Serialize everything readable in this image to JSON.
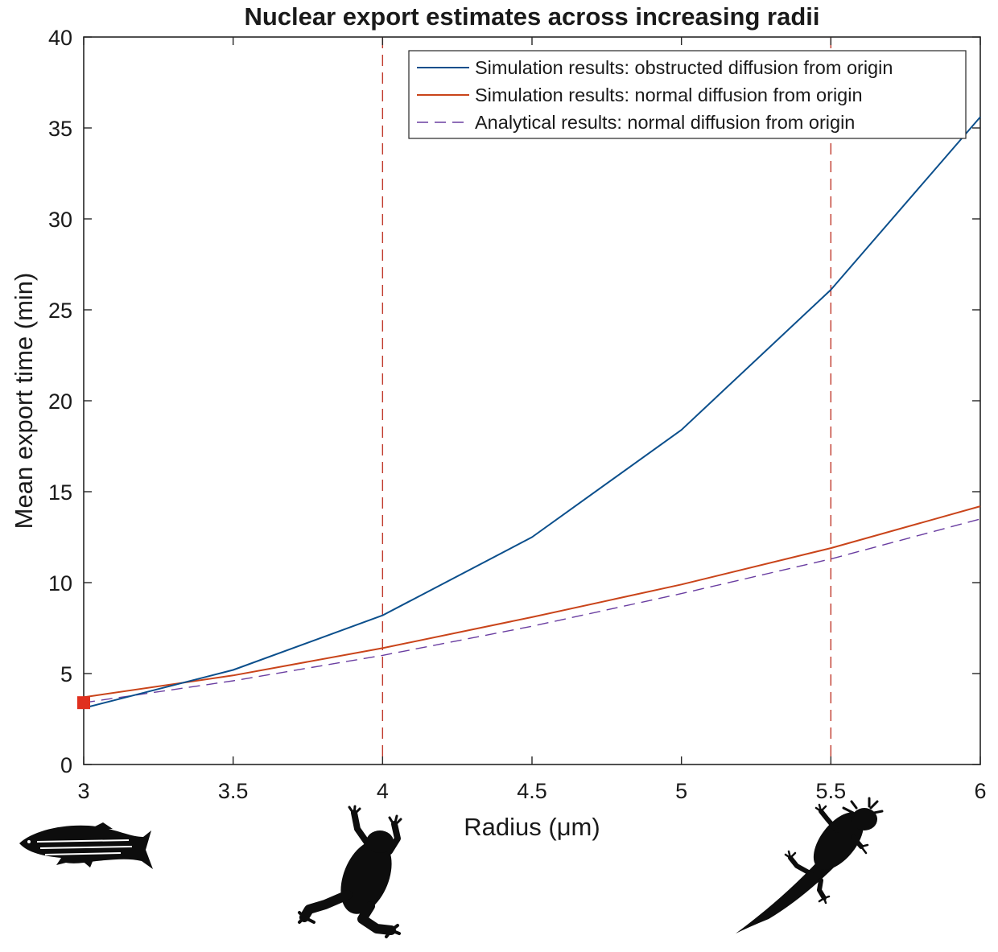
{
  "chart_data": {
    "type": "line",
    "title": "Nuclear export estimates across increasing radii",
    "xlabel": "Radius (μm)",
    "ylabel": "Mean export time (min)",
    "xlim": [
      3,
      6
    ],
    "ylim": [
      0,
      40
    ],
    "xticks": [
      "3",
      "3.5",
      "4",
      "4.5",
      "5",
      "5.5",
      "6"
    ],
    "yticks": [
      "0",
      "5",
      "10",
      "15",
      "20",
      "25",
      "30",
      "35",
      "40"
    ],
    "grid": false,
    "legend_position": "top-right",
    "series": [
      {
        "name": "Simulation results: obstructed diffusion from origin",
        "color": "#0b4f8c",
        "style": "solid",
        "x": [
          3,
          3.5,
          4,
          4.5,
          5,
          5.5,
          6
        ],
        "y": [
          3.1,
          5.2,
          8.2,
          12.5,
          18.4,
          26.1,
          35.6
        ]
      },
      {
        "name": "Simulation results: normal diffusion from origin",
        "color": "#c9441a",
        "style": "solid",
        "x": [
          3,
          3.5,
          4,
          4.5,
          5,
          5.5,
          6
        ],
        "y": [
          3.7,
          4.9,
          6.4,
          8.1,
          9.9,
          11.9,
          14.2
        ]
      },
      {
        "name": "Analytical results: normal diffusion from origin",
        "color": "#6a3ea1",
        "style": "dashed",
        "x": [
          3,
          3.5,
          4,
          4.5,
          5,
          5.5,
          6
        ],
        "y": [
          3.4,
          4.6,
          6.0,
          7.6,
          9.4,
          11.3,
          13.5
        ]
      }
    ],
    "reference_lines": [
      {
        "axis": "x",
        "value": 4,
        "color": "#c0392b",
        "style": "dashed"
      },
      {
        "axis": "x",
        "value": 5.5,
        "color": "#c0392b",
        "style": "dashed"
      }
    ],
    "markers": [
      {
        "x": 3,
        "y": 3.4,
        "color": "#e0301e",
        "shape": "square"
      }
    ],
    "illustrations": [
      {
        "name": "zebrafish-silhouette",
        "x": 3
      },
      {
        "name": "frog-silhouette",
        "x": 4
      },
      {
        "name": "axolotl-silhouette",
        "x": 5.5
      }
    ]
  }
}
